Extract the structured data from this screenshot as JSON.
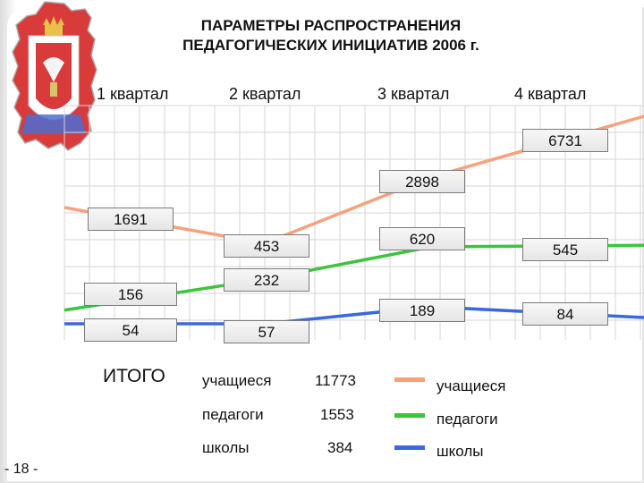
{
  "title_line1": "ПАРАМЕТРЫ РАСПРОСТРАНЕНИЯ",
  "title_line2": "ПЕДАГОГИЧЕСКИХ ИНИЦИАТИВ 2006 г.",
  "page_number": "- 18 -",
  "colors": {
    "students": "#f5a27d",
    "teachers": "#3cc43c",
    "schools": "#3a68e0"
  },
  "chart_data": {
    "type": "line",
    "categories": [
      "1 квартал",
      "2 квартал",
      "3 квартал",
      "4 квартал"
    ],
    "series": [
      {
        "name": "учащиеся",
        "values": [
          1691,
          453,
          2898,
          6731
        ],
        "labels": [
          "1691",
          "453",
          "2898",
          "6731"
        ]
      },
      {
        "name": "педагоги",
        "values": [
          156,
          232,
          620,
          545
        ],
        "labels": [
          "156",
          "232",
          "620",
          "545"
        ]
      },
      {
        "name": "школы",
        "values": [
          54,
          57,
          189,
          84
        ],
        "labels": [
          "54",
          "57",
          "189",
          "84"
        ]
      }
    ],
    "legend_position": "bottom-right",
    "grid": true
  },
  "totals": {
    "heading": "ИТОГО",
    "rows": [
      {
        "name": "учащиеся",
        "value": "11773"
      },
      {
        "name": "педагоги",
        "value": "1553"
      },
      {
        "name": "школы",
        "value": "384"
      }
    ]
  }
}
